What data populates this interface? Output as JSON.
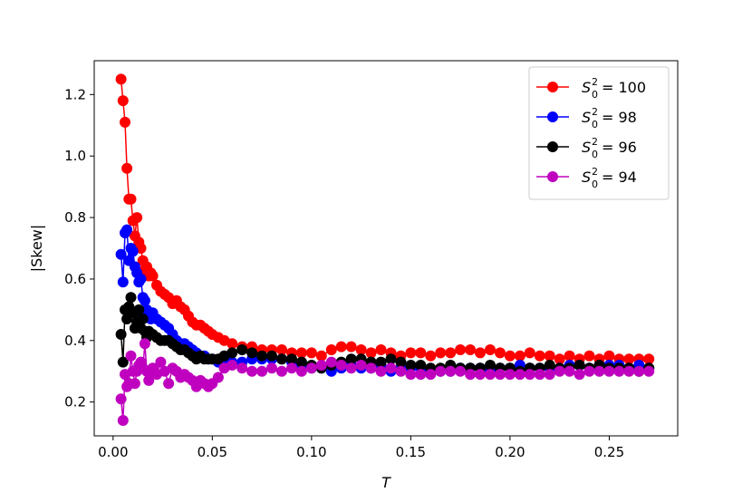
{
  "chart_data": {
    "type": "line",
    "title": "",
    "xlabel": "T",
    "ylabel": "|Skew|",
    "xlim": [
      -0.0095,
      0.2845
    ],
    "ylim": [
      0.09,
      1.31
    ],
    "xticks": [
      0.0,
      0.05,
      0.1,
      0.15,
      0.2,
      0.25
    ],
    "xtick_labels": [
      "0.00",
      "0.05",
      "0.10",
      "0.15",
      "0.20",
      "0.25"
    ],
    "yticks": [
      0.2,
      0.4,
      0.6,
      0.8,
      1.0,
      1.2
    ],
    "ytick_labels": [
      "0.2",
      "0.4",
      "0.6",
      "0.8",
      "1.0",
      "1.2"
    ],
    "grid": false,
    "legend_position": "top-right",
    "series": [
      {
        "name": "S₀² = 100",
        "legend_base": "S",
        "legend_sup": "2",
        "legend_sub": "0",
        "legend_value": "= 100",
        "color": "#ff0000",
        "x": [
          0.004,
          0.005,
          0.006,
          0.007,
          0.008,
          0.009,
          0.01,
          0.011,
          0.012,
          0.013,
          0.014,
          0.015,
          0.016,
          0.017,
          0.018,
          0.019,
          0.02,
          0.022,
          0.024,
          0.026,
          0.028,
          0.03,
          0.032,
          0.034,
          0.036,
          0.038,
          0.04,
          0.042,
          0.044,
          0.046,
          0.048,
          0.05,
          0.053,
          0.056,
          0.06,
          0.065,
          0.07,
          0.075,
          0.08,
          0.085,
          0.09,
          0.095,
          0.1,
          0.105,
          0.11,
          0.115,
          0.12,
          0.125,
          0.13,
          0.135,
          0.14,
          0.145,
          0.15,
          0.155,
          0.16,
          0.165,
          0.17,
          0.175,
          0.18,
          0.185,
          0.19,
          0.195,
          0.2,
          0.205,
          0.21,
          0.215,
          0.22,
          0.225,
          0.23,
          0.235,
          0.24,
          0.245,
          0.25,
          0.255,
          0.26,
          0.265,
          0.27
        ],
        "y": [
          1.25,
          1.18,
          1.11,
          0.96,
          0.86,
          0.86,
          0.79,
          0.74,
          0.8,
          0.72,
          0.7,
          0.66,
          0.63,
          0.64,
          0.61,
          0.62,
          0.61,
          0.58,
          0.56,
          0.55,
          0.54,
          0.52,
          0.53,
          0.51,
          0.5,
          0.48,
          0.46,
          0.45,
          0.45,
          0.44,
          0.43,
          0.42,
          0.41,
          0.4,
          0.39,
          0.38,
          0.38,
          0.37,
          0.37,
          0.37,
          0.36,
          0.36,
          0.36,
          0.35,
          0.37,
          0.38,
          0.38,
          0.37,
          0.36,
          0.37,
          0.36,
          0.35,
          0.36,
          0.36,
          0.35,
          0.36,
          0.36,
          0.37,
          0.37,
          0.36,
          0.37,
          0.36,
          0.35,
          0.35,
          0.36,
          0.35,
          0.35,
          0.34,
          0.35,
          0.34,
          0.35,
          0.34,
          0.35,
          0.34,
          0.34,
          0.34,
          0.34
        ]
      },
      {
        "name": "S₀² = 98",
        "legend_base": "S",
        "legend_sup": "2",
        "legend_sub": "0",
        "legend_value": "= 98",
        "color": "#0000ff",
        "x": [
          0.004,
          0.005,
          0.006,
          0.007,
          0.008,
          0.009,
          0.01,
          0.011,
          0.012,
          0.013,
          0.014,
          0.015,
          0.016,
          0.017,
          0.018,
          0.019,
          0.02,
          0.022,
          0.024,
          0.026,
          0.028,
          0.03,
          0.032,
          0.034,
          0.036,
          0.038,
          0.04,
          0.042,
          0.044,
          0.046,
          0.048,
          0.05,
          0.053,
          0.056,
          0.06,
          0.065,
          0.07,
          0.075,
          0.08,
          0.085,
          0.09,
          0.095,
          0.1,
          0.105,
          0.11,
          0.115,
          0.12,
          0.125,
          0.13,
          0.135,
          0.14,
          0.145,
          0.15,
          0.155,
          0.16,
          0.165,
          0.17,
          0.175,
          0.18,
          0.185,
          0.19,
          0.195,
          0.2,
          0.205,
          0.21,
          0.215,
          0.22,
          0.225,
          0.23,
          0.235,
          0.24,
          0.245,
          0.25,
          0.255,
          0.26,
          0.265,
          0.27
        ],
        "y": [
          0.68,
          0.59,
          0.75,
          0.76,
          0.66,
          0.7,
          0.69,
          0.64,
          0.62,
          0.59,
          0.6,
          0.54,
          0.53,
          0.5,
          0.48,
          0.47,
          0.49,
          0.47,
          0.46,
          0.45,
          0.44,
          0.42,
          0.4,
          0.39,
          0.39,
          0.38,
          0.37,
          0.36,
          0.35,
          0.35,
          0.34,
          0.34,
          0.33,
          0.32,
          0.33,
          0.33,
          0.34,
          0.34,
          0.34,
          0.34,
          0.33,
          0.32,
          0.31,
          0.31,
          0.3,
          0.31,
          0.32,
          0.31,
          0.31,
          0.32,
          0.3,
          0.31,
          0.31,
          0.31,
          0.3,
          0.3,
          0.3,
          0.31,
          0.31,
          0.31,
          0.3,
          0.31,
          0.31,
          0.32,
          0.31,
          0.31,
          0.31,
          0.31,
          0.32,
          0.32,
          0.31,
          0.32,
          0.32,
          0.32,
          0.31,
          0.32,
          0.31
        ]
      },
      {
        "name": "S₀² = 96",
        "legend_base": "S",
        "legend_sup": "2",
        "legend_sub": "0",
        "legend_value": "= 96",
        "color": "#000000",
        "x": [
          0.004,
          0.005,
          0.006,
          0.007,
          0.008,
          0.009,
          0.01,
          0.011,
          0.012,
          0.013,
          0.014,
          0.015,
          0.016,
          0.017,
          0.018,
          0.019,
          0.02,
          0.022,
          0.024,
          0.026,
          0.028,
          0.03,
          0.032,
          0.034,
          0.036,
          0.038,
          0.04,
          0.042,
          0.044,
          0.046,
          0.048,
          0.05,
          0.053,
          0.056,
          0.06,
          0.065,
          0.07,
          0.075,
          0.08,
          0.085,
          0.09,
          0.095,
          0.1,
          0.105,
          0.11,
          0.115,
          0.12,
          0.125,
          0.13,
          0.135,
          0.14,
          0.145,
          0.15,
          0.155,
          0.16,
          0.165,
          0.17,
          0.175,
          0.18,
          0.185,
          0.19,
          0.195,
          0.2,
          0.205,
          0.21,
          0.215,
          0.22,
          0.225,
          0.23,
          0.235,
          0.24,
          0.245,
          0.25,
          0.255,
          0.26,
          0.265,
          0.27
        ],
        "y": [
          0.42,
          0.33,
          0.5,
          0.47,
          0.51,
          0.54,
          0.49,
          0.44,
          0.46,
          0.5,
          0.44,
          0.47,
          0.43,
          0.41,
          0.43,
          0.42,
          0.42,
          0.41,
          0.4,
          0.4,
          0.4,
          0.39,
          0.38,
          0.37,
          0.37,
          0.36,
          0.35,
          0.34,
          0.35,
          0.34,
          0.34,
          0.34,
          0.34,
          0.35,
          0.36,
          0.37,
          0.36,
          0.35,
          0.35,
          0.34,
          0.34,
          0.33,
          0.32,
          0.31,
          0.32,
          0.33,
          0.34,
          0.34,
          0.33,
          0.33,
          0.34,
          0.33,
          0.32,
          0.32,
          0.31,
          0.31,
          0.32,
          0.31,
          0.31,
          0.31,
          0.32,
          0.31,
          0.31,
          0.3,
          0.31,
          0.31,
          0.32,
          0.31,
          0.31,
          0.32,
          0.31,
          0.32,
          0.31,
          0.31,
          0.31,
          0.3,
          0.31
        ]
      },
      {
        "name": "S₀² = 94",
        "legend_base": "S",
        "legend_sup": "2",
        "legend_sub": "0",
        "legend_value": "= 94",
        "color": "#bf00bf",
        "x": [
          0.004,
          0.005,
          0.006,
          0.007,
          0.008,
          0.009,
          0.01,
          0.011,
          0.012,
          0.013,
          0.014,
          0.015,
          0.016,
          0.017,
          0.018,
          0.019,
          0.02,
          0.022,
          0.024,
          0.026,
          0.028,
          0.03,
          0.032,
          0.034,
          0.036,
          0.038,
          0.04,
          0.042,
          0.044,
          0.046,
          0.048,
          0.05,
          0.053,
          0.056,
          0.06,
          0.065,
          0.07,
          0.075,
          0.08,
          0.085,
          0.09,
          0.095,
          0.1,
          0.105,
          0.11,
          0.115,
          0.12,
          0.125,
          0.13,
          0.135,
          0.14,
          0.145,
          0.15,
          0.155,
          0.16,
          0.165,
          0.17,
          0.175,
          0.18,
          0.185,
          0.19,
          0.195,
          0.2,
          0.205,
          0.21,
          0.215,
          0.22,
          0.225,
          0.23,
          0.235,
          0.24,
          0.245,
          0.25,
          0.255,
          0.26,
          0.265,
          0.27
        ],
        "y": [
          0.21,
          0.14,
          0.29,
          0.25,
          0.26,
          0.35,
          0.3,
          0.26,
          0.3,
          0.32,
          0.33,
          0.31,
          0.39,
          0.3,
          0.27,
          0.29,
          0.31,
          0.29,
          0.33,
          0.3,
          0.26,
          0.31,
          0.3,
          0.28,
          0.29,
          0.28,
          0.27,
          0.25,
          0.27,
          0.26,
          0.25,
          0.26,
          0.28,
          0.31,
          0.32,
          0.31,
          0.3,
          0.3,
          0.31,
          0.3,
          0.31,
          0.3,
          0.31,
          0.32,
          0.33,
          0.32,
          0.31,
          0.32,
          0.31,
          0.3,
          0.31,
          0.3,
          0.29,
          0.29,
          0.29,
          0.3,
          0.3,
          0.3,
          0.29,
          0.29,
          0.29,
          0.29,
          0.29,
          0.29,
          0.29,
          0.29,
          0.29,
          0.3,
          0.3,
          0.29,
          0.3,
          0.3,
          0.3,
          0.3,
          0.3,
          0.3,
          0.3
        ]
      }
    ]
  }
}
